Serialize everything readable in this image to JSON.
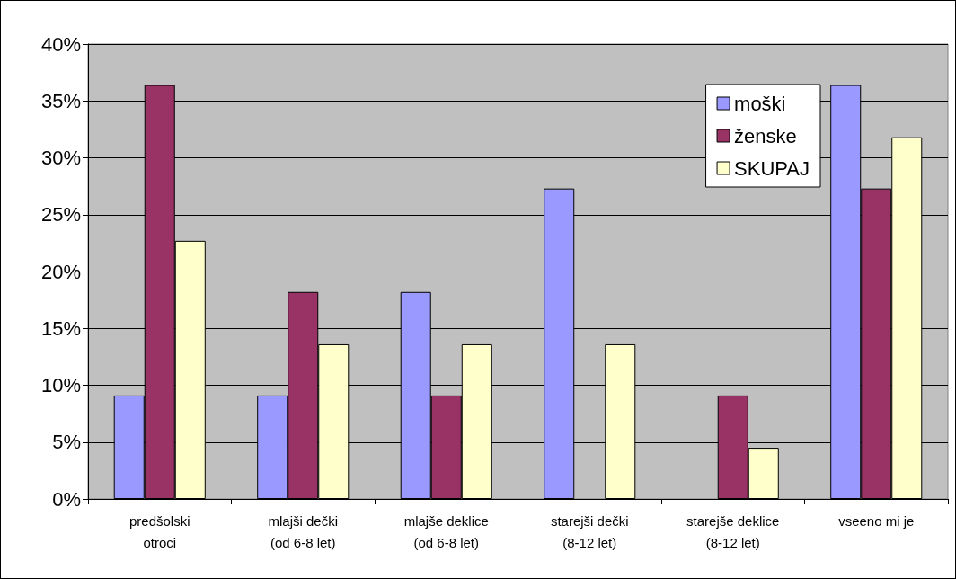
{
  "chart_data": {
    "type": "bar",
    "categories": [
      "predšolski\notroci",
      "mlajši dečki\n(od 6-8 let)",
      "mlajše deklice\n(od 6-8 let)",
      "starejši dečki\n(8-12 let)",
      "starejše deklice\n(8-12 let)",
      "vseeno mi je"
    ],
    "series": [
      {
        "name": "moški",
        "color": "#9999ff",
        "values": [
          9.1,
          9.1,
          18.2,
          27.3,
          0,
          36.4
        ]
      },
      {
        "name": "ženske",
        "color": "#993366",
        "values": [
          36.4,
          18.2,
          9.1,
          0,
          9.1,
          27.3
        ]
      },
      {
        "name": "SKUPAJ",
        "color": "#ffffcc",
        "values": [
          22.7,
          13.6,
          13.6,
          13.6,
          4.5,
          31.8
        ]
      }
    ],
    "ylim": [
      0,
      40
    ],
    "yticks": [
      {
        "value": 0,
        "label": "0%"
      },
      {
        "value": 5,
        "label": "5%"
      },
      {
        "value": 10,
        "label": "10%"
      },
      {
        "value": 15,
        "label": "15%"
      },
      {
        "value": 20,
        "label": "20%"
      },
      {
        "value": 25,
        "label": "25%"
      },
      {
        "value": 30,
        "label": "30%"
      },
      {
        "value": 35,
        "label": "35%"
      },
      {
        "value": 40,
        "label": "40%"
      }
    ],
    "grid": "y",
    "legend": "top right"
  }
}
